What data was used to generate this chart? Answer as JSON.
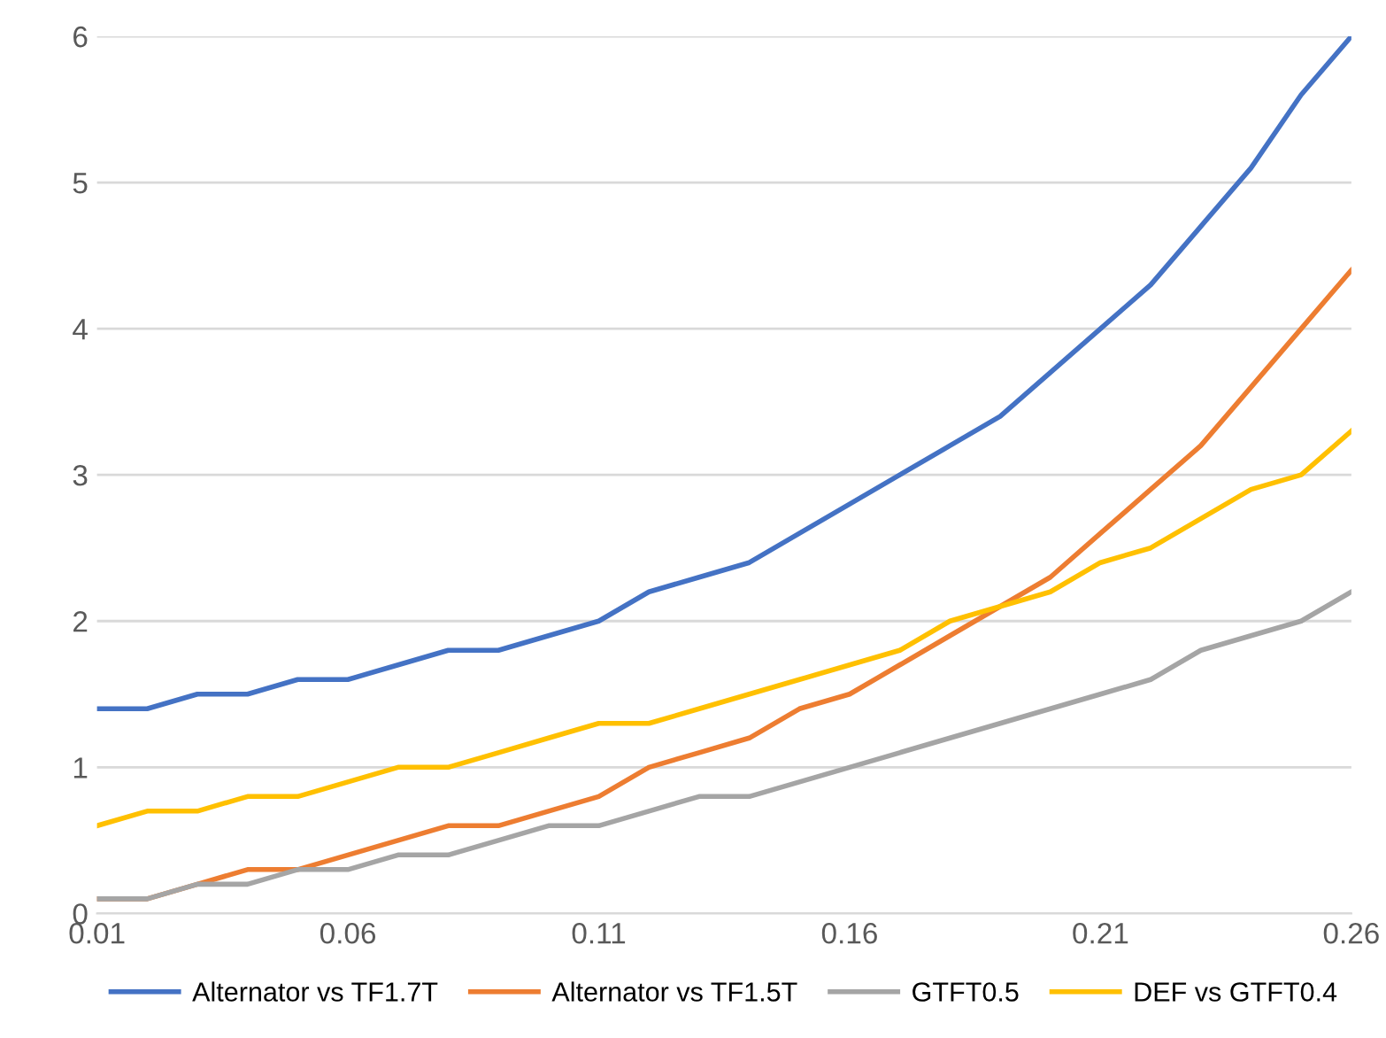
{
  "chart_data": {
    "type": "line",
    "x": [
      0.01,
      0.02,
      0.03,
      0.04,
      0.05,
      0.06,
      0.07,
      0.08,
      0.09,
      0.1,
      0.11,
      0.12,
      0.13,
      0.14,
      0.15,
      0.16,
      0.17,
      0.18,
      0.19,
      0.2,
      0.21,
      0.22,
      0.23,
      0.24,
      0.25,
      0.26
    ],
    "series": [
      {
        "name": "Alternator vs TF1.7T",
        "color": "#4472c4",
        "values": [
          1.4,
          1.4,
          1.5,
          1.5,
          1.6,
          1.6,
          1.7,
          1.8,
          1.8,
          1.9,
          2.0,
          2.2,
          2.3,
          2.4,
          2.6,
          2.8,
          3.0,
          3.2,
          3.4,
          3.7,
          4.0,
          4.3,
          4.7,
          5.1,
          5.6,
          6.0
        ]
      },
      {
        "name": "Alternator vs TF1.5T",
        "color": "#ed7d31",
        "values": [
          0.1,
          0.1,
          0.2,
          0.3,
          0.3,
          0.4,
          0.5,
          0.6,
          0.6,
          0.7,
          0.8,
          1.0,
          1.1,
          1.2,
          1.4,
          1.5,
          1.7,
          1.9,
          2.1,
          2.3,
          2.6,
          2.9,
          3.2,
          3.6,
          4.0,
          4.4
        ]
      },
      {
        "name": "GTFT0.5",
        "color": "#a5a5a5",
        "values": [
          0.1,
          0.1,
          0.2,
          0.2,
          0.3,
          0.3,
          0.4,
          0.4,
          0.5,
          0.6,
          0.6,
          0.7,
          0.8,
          0.8,
          0.9,
          1.0,
          1.1,
          1.2,
          1.3,
          1.4,
          1.5,
          1.6,
          1.8,
          1.9,
          2.0,
          2.2
        ]
      },
      {
        "name": "DEF vs GTFT0.4",
        "color": "#ffc000",
        "values": [
          0.6,
          0.7,
          0.7,
          0.8,
          0.8,
          0.9,
          1.0,
          1.0,
          1.1,
          1.2,
          1.3,
          1.3,
          1.4,
          1.5,
          1.6,
          1.7,
          1.8,
          2.0,
          2.1,
          2.2,
          2.4,
          2.5,
          2.7,
          2.9,
          3.0,
          3.3
        ]
      }
    ],
    "xlim": [
      0.01,
      0.26
    ],
    "xticks": [
      0.01,
      0.06,
      0.11,
      0.16,
      0.21,
      0.26
    ],
    "ylim": [
      0,
      6
    ],
    "yticks": [
      0,
      1,
      2,
      3,
      4,
      5,
      6
    ],
    "grid": "y",
    "legend": "bottom",
    "marker": "none",
    "line_style": "solid"
  }
}
